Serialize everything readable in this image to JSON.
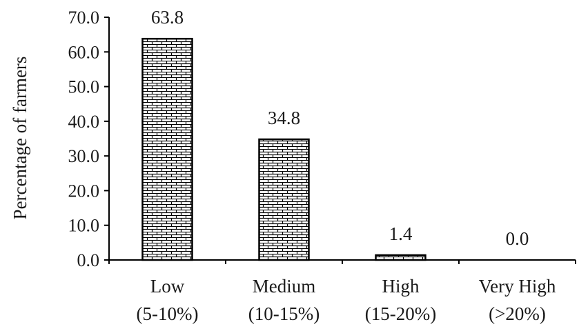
{
  "chart_data": {
    "type": "bar",
    "title": "",
    "xlabel": "",
    "ylabel": "Percentage of farmers",
    "ylim": [
      0,
      70
    ],
    "ytick_step": 10,
    "ytick_labels": [
      "0.0",
      "10.0",
      "20.0",
      "30.0",
      "40.0",
      "50.0",
      "60.0",
      "70.0"
    ],
    "categories": [
      {
        "line1": "Low",
        "line2": "(5-10%)"
      },
      {
        "line1": "Medium",
        "line2": "(10-15%)"
      },
      {
        "line1": "High",
        "line2": "(15-20%)"
      },
      {
        "line1": "Very High",
        "line2": "(>20%)"
      }
    ],
    "values": [
      63.8,
      34.8,
      1.4,
      0.0
    ],
    "data_labels": [
      "63.8",
      "34.8",
      "1.4",
      "0.0"
    ],
    "legend": "none",
    "grid": false,
    "bar_fill": "brick-hatch",
    "colors": {
      "bar_stroke": "#000000",
      "bar_pattern": "#000000",
      "bar_background": "#ffffff",
      "axis": "#000000",
      "text": "#1a1a1a"
    }
  }
}
